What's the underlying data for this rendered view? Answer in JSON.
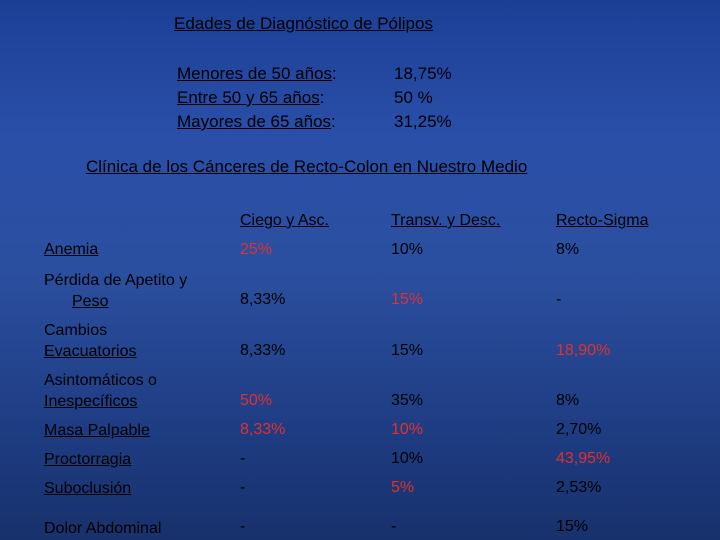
{
  "polyps": {
    "title": "Edades de Diagnóstico de Pólipos",
    "rows": [
      {
        "label": "Menores de 50 años",
        "value": "18,75%"
      },
      {
        "label": "Entre 50 y 65 años",
        "value": "50 %"
      },
      {
        "label": "Mayores de 65 años",
        "value": "31,25%"
      }
    ]
  },
  "clinic": {
    "title": "Clínica de los Cánceres de Recto-Colon en Nuestro Medio",
    "columns": [
      "Ciego y Asc.",
      "Transv. y Desc.",
      "Recto-Sigma"
    ],
    "rows": [
      {
        "label": "Anemia",
        "values": [
          "25%",
          "10%",
          "8%"
        ]
      },
      {
        "label_line1": "Pérdida de Apetito y",
        "label_line2": "Peso",
        "values": [
          "8,33%",
          "15%",
          "-"
        ]
      },
      {
        "label_line1": "Cambios",
        "label_line2": "Evacuatorios",
        "values": [
          "8,33%",
          "15%",
          "18,90%"
        ]
      },
      {
        "label_line1": "Asintomáticos o",
        "label_line2": "Inespecíficos",
        "values": [
          "50%",
          "35%",
          "8%"
        ]
      },
      {
        "label": "Masa Palpable",
        "values": [
          "8,33%",
          "10%",
          "2,70%"
        ]
      },
      {
        "label": "Proctorragia",
        "values": [
          "-",
          "10%",
          "43,95%"
        ]
      },
      {
        "label": "Suboclusión",
        "values": [
          "-",
          "5%",
          "2,53%"
        ]
      },
      {
        "label": "Dolor Abdominal",
        "values": [
          "-",
          "-",
          "15%"
        ]
      }
    ],
    "highlight_color": "#e03030"
  }
}
